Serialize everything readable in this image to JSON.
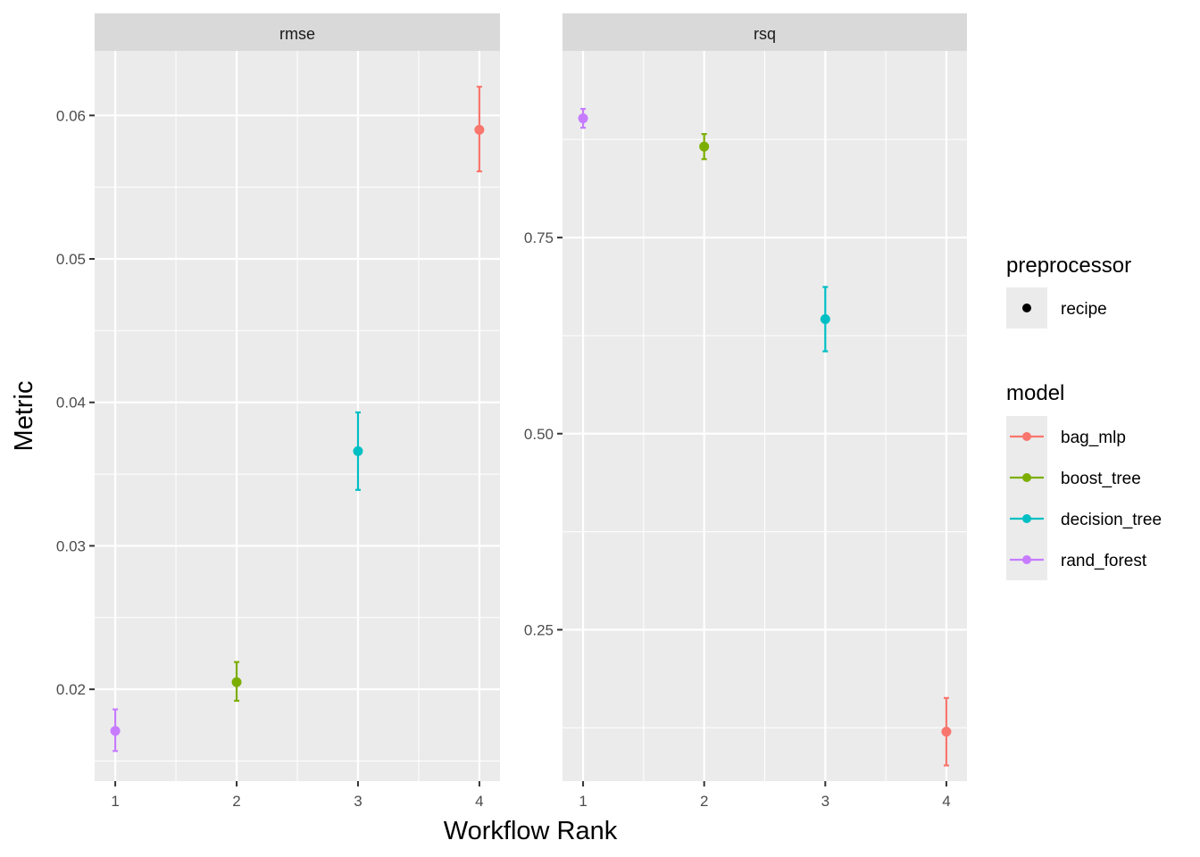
{
  "chart_data": {
    "type": "scatter",
    "xlabel": "Workflow Rank",
    "ylabel": "Metric",
    "grid": true,
    "legend_position": "right",
    "x": [
      1,
      2,
      3,
      4
    ],
    "panels": [
      {
        "name": "rmse",
        "xlim": [
          0.83,
          4.17
        ],
        "ylim": [
          0.0136,
          0.0645
        ],
        "yticks": [
          0.02,
          0.03,
          0.04,
          0.05,
          0.06
        ],
        "ytick_labels": [
          "0.02",
          "0.03",
          "0.04",
          "0.05",
          "0.06"
        ],
        "points": [
          {
            "rank": 1,
            "model": "rand_forest",
            "mean": 0.0171,
            "lower": 0.0157,
            "upper": 0.0186
          },
          {
            "rank": 2,
            "model": "boost_tree",
            "mean": 0.0205,
            "lower": 0.0192,
            "upper": 0.0219
          },
          {
            "rank": 3,
            "model": "decision_tree",
            "mean": 0.0366,
            "lower": 0.0339,
            "upper": 0.0393
          },
          {
            "rank": 4,
            "model": "bag_mlp",
            "mean": 0.059,
            "lower": 0.0561,
            "upper": 0.062
          }
        ]
      },
      {
        "name": "rsq",
        "xlim": [
          0.83,
          4.17
        ],
        "ylim": [
          0.057,
          0.988
        ],
        "yticks": [
          0.25,
          0.5,
          0.75
        ],
        "ytick_labels": [
          "0.25",
          "0.50",
          "0.75"
        ],
        "points": [
          {
            "rank": 1,
            "model": "rand_forest",
            "mean": 0.902,
            "lower": 0.89,
            "upper": 0.914
          },
          {
            "rank": 2,
            "model": "boost_tree",
            "mean": 0.866,
            "lower": 0.85,
            "upper": 0.882
          },
          {
            "rank": 3,
            "model": "decision_tree",
            "mean": 0.646,
            "lower": 0.605,
            "upper": 0.687
          },
          {
            "rank": 4,
            "model": "bag_mlp",
            "mean": 0.12,
            "lower": 0.077,
            "upper": 0.163
          }
        ]
      }
    ],
    "legend": {
      "preprocessor_title": "preprocessor",
      "preprocessor_items": [
        "recipe"
      ],
      "model_title": "model",
      "model_items": [
        "bag_mlp",
        "boost_tree",
        "decision_tree",
        "rand_forest"
      ]
    },
    "colors": {
      "bag_mlp": "#F8766D",
      "boost_tree": "#7CAE00",
      "decision_tree": "#00BFC4",
      "rand_forest": "#C77CFF",
      "panel_bg": "#EBEBEB",
      "strip_bg": "#D9D9D9",
      "grid": "#FFFFFF"
    }
  }
}
